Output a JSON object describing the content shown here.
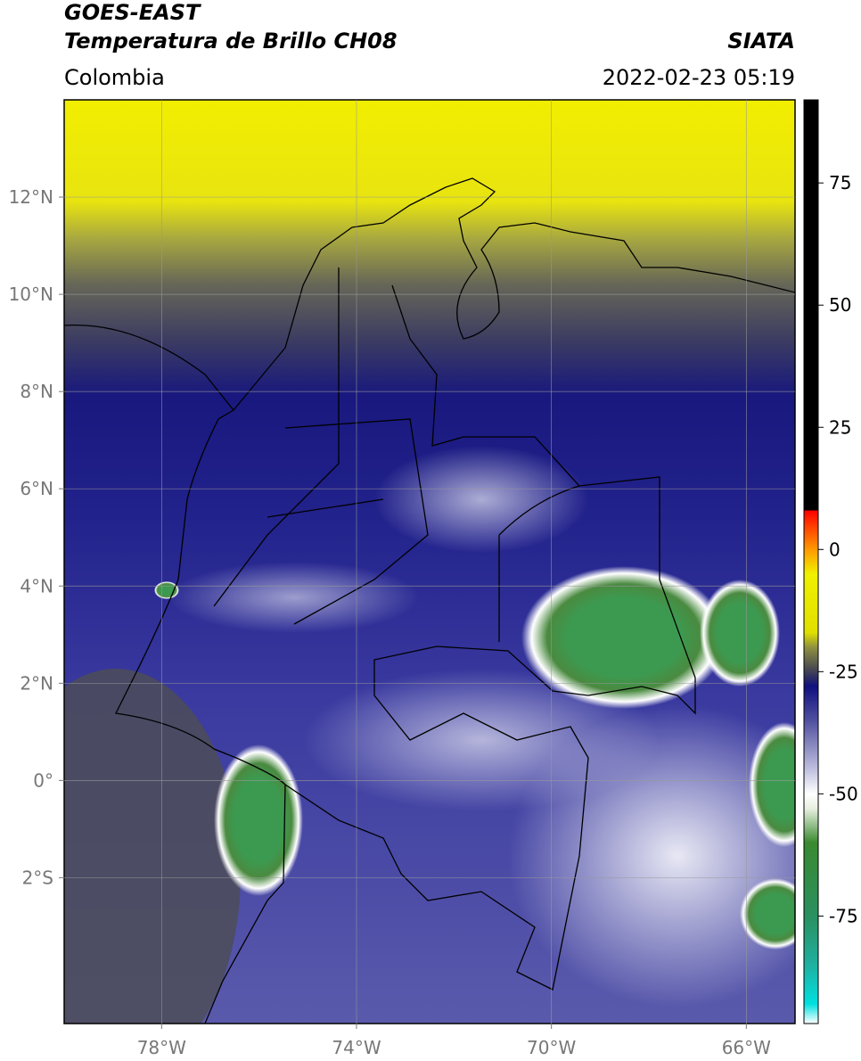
{
  "header": {
    "satellite": "GOES-EAST",
    "product": "Temperatura de Brillo CH08",
    "source": "SIATA",
    "region": "Colombia",
    "timestamp": "2022-02-23 05:19"
  },
  "map": {
    "lonlim": [
      -80,
      -65
    ],
    "latlim": [
      -5,
      14
    ],
    "lonticks": [
      {
        "value": -78,
        "label": "78°W"
      },
      {
        "value": -74,
        "label": "74°W"
      },
      {
        "value": -70,
        "label": "70°W"
      },
      {
        "value": -66,
        "label": "66°W"
      }
    ],
    "latticks": [
      {
        "value": 12,
        "label": "12°N"
      },
      {
        "value": 10,
        "label": "10°N"
      },
      {
        "value": 8,
        "label": "8°N"
      },
      {
        "value": 6,
        "label": "6°N"
      },
      {
        "value": 4,
        "label": "4°N"
      },
      {
        "value": 2,
        "label": "2°N"
      },
      {
        "value": 0,
        "label": "0°"
      },
      {
        "value": -2,
        "label": "2°S"
      }
    ],
    "grid": true
  },
  "colorbar": {
    "clim": [
      -97,
      92
    ],
    "ticks": [
      75,
      50,
      25,
      0,
      -25,
      -50,
      -75
    ],
    "colormap": [
      {
        "value": -97,
        "color": "#ffffff"
      },
      {
        "value": -93,
        "color": "#00e0e0"
      },
      {
        "value": -85,
        "color": "#20b0a0"
      },
      {
        "value": -75,
        "color": "#2a9060"
      },
      {
        "value": -60,
        "color": "#3a8a30"
      },
      {
        "value": -53,
        "color": "#e8f0e0"
      },
      {
        "value": -50,
        "color": "#ffffff"
      },
      {
        "value": -45,
        "color": "#c0c0e0"
      },
      {
        "value": -35,
        "color": "#5050a0"
      },
      {
        "value": -28,
        "color": "#101080"
      },
      {
        "value": -26,
        "color": "#303060"
      },
      {
        "value": -24,
        "color": "#505050"
      },
      {
        "value": -20,
        "color": "#909040"
      },
      {
        "value": -17,
        "color": "#e0e000"
      },
      {
        "value": -5,
        "color": "#f0f000"
      },
      {
        "value": 0,
        "color": "#ff9900"
      },
      {
        "value": 8,
        "color": "#ff0000"
      },
      {
        "value": 8,
        "color": "#000000"
      },
      {
        "value": 92,
        "color": "#000000"
      }
    ]
  }
}
